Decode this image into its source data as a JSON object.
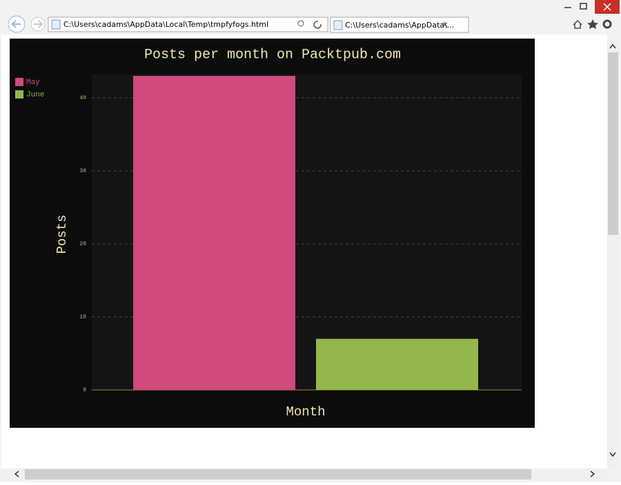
{
  "browser": {
    "address": "C:\\Users\\cadams\\AppData\\Local\\Temp\\tmpfyfogs.html",
    "tab": "C:\\Users\\cadams\\AppData\\..."
  },
  "chart_data": {
    "type": "bar",
    "title": "Posts per month on Packtpub.com",
    "x_label": "Month",
    "y_label": "Posts",
    "series": [
      {
        "name": "May",
        "color": "#d04a7e",
        "values": [
          43
        ]
      },
      {
        "name": "June",
        "color": "#93b64d",
        "values": [
          7
        ]
      }
    ],
    "ylim": [
      0,
      43.2
    ],
    "yticks": [
      0,
      10,
      20,
      30,
      40
    ],
    "grid": true,
    "legend": "top-left"
  }
}
